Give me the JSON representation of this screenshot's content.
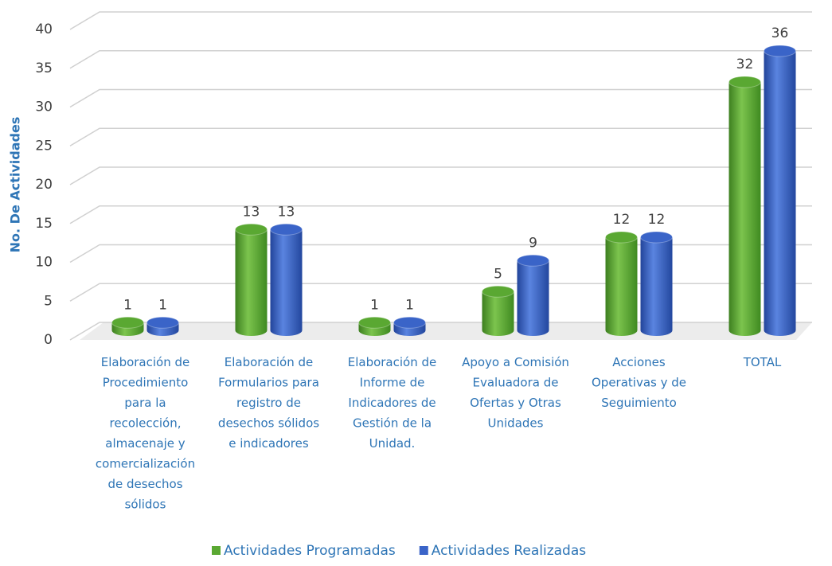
{
  "chart_data": {
    "type": "bar3d",
    "y_label": "No. De Actividades",
    "categories": [
      "Elaboración de Procedimiento para la recolección, almacenaje y comercialización de desechos sólidos",
      "Elaboración de Formularios para registro de desechos sólidos e indicadores",
      "Elaboración de Informe de Indicadores de Gestión de la Unidad.",
      "Apoyo a Comisión Evaluadora de Ofertas y Otras Unidades",
      "Acciones Operativas y de Seguimiento",
      "TOTAL"
    ],
    "series": [
      {
        "name": "Actividades Programadas",
        "color": "#5aa832",
        "values": [
          1,
          13,
          1,
          5,
          12,
          32
        ]
      },
      {
        "name": "Actividades Realizadas",
        "color": "#3a64c8",
        "values": [
          1,
          13,
          1,
          9,
          12,
          36
        ]
      }
    ],
    "ylim": [
      0,
      40
    ],
    "yticks": [
      0,
      5,
      10,
      15,
      20,
      25,
      30,
      35,
      40
    ],
    "grid": true
  }
}
